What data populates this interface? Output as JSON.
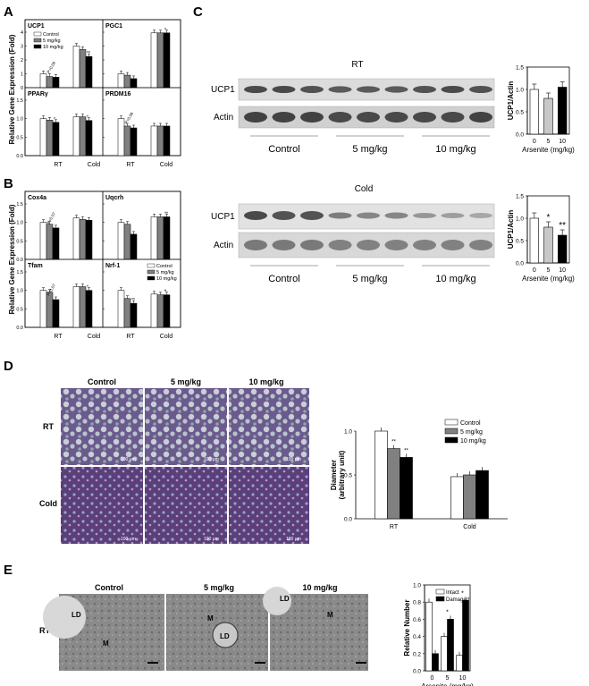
{
  "panel_labels": {
    "A": "A",
    "B": "B",
    "C": "C",
    "D": "D",
    "E": "E"
  },
  "common": {
    "ylabel_fold": "Relative Gene Expression (Fold)",
    "conditions": [
      "RT",
      "Cold"
    ],
    "legend": [
      "Control",
      "5 mg/kg",
      "10 mg/kg"
    ],
    "colors": {
      "control": "#ffffff",
      "low": "#808080",
      "high": "#000000",
      "gel_bg": "#d7d7d7",
      "band": "#3a3a3a"
    }
  },
  "chart_data": [
    {
      "id": "A1",
      "type": "bar",
      "title": "UCP1",
      "ylim": [
        0,
        4
      ],
      "yticks": [
        "0",
        "1",
        "2",
        "3",
        "4"
      ],
      "categories": [
        "RT",
        "Cold"
      ],
      "series": [
        {
          "name": "Control",
          "values": [
            1.0,
            3.0
          ]
        },
        {
          "name": "5 mg/kg",
          "values": [
            0.8,
            2.75
          ]
        },
        {
          "name": "10 mg/kg",
          "values": [
            0.75,
            2.25
          ]
        }
      ],
      "annotations": [
        "P=0.09",
        "**"
      ],
      "legend": true
    },
    {
      "id": "A2",
      "type": "bar",
      "title": "PGC1",
      "ylim": [
        0,
        4
      ],
      "yticks": [
        "0",
        "1",
        "2",
        "3",
        "4"
      ],
      "categories": [
        "RT",
        "Cold"
      ],
      "series": [
        {
          "name": "Control",
          "values": [
            1.0,
            3.95
          ]
        },
        {
          "name": "5 mg/kg",
          "values": [
            0.9,
            3.95
          ]
        },
        {
          "name": "10 mg/kg",
          "values": [
            0.65,
            3.95
          ]
        }
      ],
      "annotations": [
        "*"
      ]
    },
    {
      "id": "A3",
      "type": "bar",
      "title": "PPARγ",
      "ylim": [
        0,
        1.5
      ],
      "yticks": [
        "0.0",
        "0.5",
        "1.0",
        "1.5"
      ],
      "categories": [
        "RT",
        "Cold"
      ],
      "series": [
        {
          "name": "Control",
          "values": [
            1.0,
            1.05
          ]
        },
        {
          "name": "5 mg/kg",
          "values": [
            0.96,
            1.05
          ]
        },
        {
          "name": "10 mg/kg",
          "values": [
            0.9,
            0.95
          ]
        }
      ],
      "annotations": [
        "*",
        "*"
      ]
    },
    {
      "id": "A4",
      "type": "bar",
      "title": "PRDM16",
      "ylim": [
        0,
        1.5
      ],
      "yticks": [
        "0.0",
        "0.5",
        "1.0",
        "1.5"
      ],
      "categories": [
        "RT",
        "Cold"
      ],
      "series": [
        {
          "name": "Control",
          "values": [
            1.0,
            0.8
          ]
        },
        {
          "name": "5 mg/kg",
          "values": [
            0.8,
            0.8
          ]
        },
        {
          "name": "10 mg/kg",
          "values": [
            0.75,
            0.8
          ]
        }
      ],
      "annotations": [
        "P=0.06"
      ]
    },
    {
      "id": "B1",
      "type": "bar",
      "title": "Cox4a",
      "ylim": [
        0,
        1.5
      ],
      "yticks": [
        "0.0",
        "0.5",
        "1.0",
        "1.5"
      ],
      "categories": [
        "RT",
        "Cold"
      ],
      "series": [
        {
          "name": "Control",
          "values": [
            1.0,
            1.12
          ]
        },
        {
          "name": "5 mg/kg",
          "values": [
            0.95,
            1.08
          ]
        },
        {
          "name": "10 mg/kg",
          "values": [
            0.85,
            1.06
          ]
        }
      ],
      "annotations": [
        "P=0.07"
      ]
    },
    {
      "id": "B2",
      "type": "bar",
      "title": "Uqcrh",
      "ylim": [
        0,
        1.5
      ],
      "yticks": [
        "0.0",
        "0.5",
        "1.0",
        "1.5"
      ],
      "categories": [
        "RT",
        "Cold"
      ],
      "series": [
        {
          "name": "Control",
          "values": [
            1.0,
            1.15
          ]
        },
        {
          "name": "5 mg/kg",
          "values": [
            0.95,
            1.15
          ]
        },
        {
          "name": "10 mg/kg",
          "values": [
            0.68,
            1.15
          ]
        }
      ],
      "annotations": [
        "**"
      ]
    },
    {
      "id": "B3",
      "type": "bar",
      "title": "Tfam",
      "ylim": [
        0,
        1.5
      ],
      "yticks": [
        "0.0",
        "0.5",
        "1.0",
        "1.5"
      ],
      "categories": [
        "RT",
        "Cold"
      ],
      "series": [
        {
          "name": "Control",
          "values": [
            1.0,
            1.1
          ]
        },
        {
          "name": "5 mg/kg",
          "values": [
            0.95,
            1.1
          ]
        },
        {
          "name": "10 mg/kg",
          "values": [
            0.75,
            1.0
          ]
        }
      ],
      "annotations": [
        "P=0.07",
        "*"
      ]
    },
    {
      "id": "B4",
      "type": "bar",
      "title": "Nrf-1",
      "ylim": [
        0,
        1.5
      ],
      "yticks": [
        "0.0",
        "0.5",
        "1.0",
        "1.5"
      ],
      "categories": [
        "RT",
        "Cold"
      ],
      "series": [
        {
          "name": "Control",
          "values": [
            1.0,
            0.9
          ]
        },
        {
          "name": "5 mg/kg",
          "values": [
            0.78,
            0.88
          ]
        },
        {
          "name": "10 mg/kg",
          "values": [
            0.65,
            0.88
          ]
        }
      ],
      "annotations": [
        "**",
        "*",
        "*"
      ],
      "legend": true
    },
    {
      "id": "C1",
      "type": "bar",
      "title": "",
      "xlabel": "Arsenite (mg/kg)",
      "ylabel": "UCP1/Actin",
      "ylim": [
        0,
        1.5
      ],
      "yticks": [
        "0.0",
        "0.5",
        "1.0",
        "1.5"
      ],
      "categories": [
        "0",
        "5",
        "10"
      ],
      "values": [
        1.0,
        0.8,
        1.05
      ],
      "colors": [
        "#ffffff",
        "#c8c8c8",
        "#000000"
      ],
      "annotations": []
    },
    {
      "id": "C2",
      "type": "bar",
      "title": "",
      "xlabel": "Arsenite (mg/kg)",
      "ylabel": "UCP1/Actin",
      "ylim": [
        0,
        1.5
      ],
      "yticks": [
        "0.0",
        "0.5",
        "1.0",
        "1.5"
      ],
      "categories": [
        "0",
        "5",
        "10"
      ],
      "values": [
        1.0,
        0.8,
        0.62
      ],
      "colors": [
        "#ffffff",
        "#c8c8c8",
        "#000000"
      ],
      "annotations": [
        "*",
        "**"
      ]
    },
    {
      "id": "D1",
      "type": "bar",
      "title": "",
      "ylabel": "Diameter\n(arbitrary unit)",
      "ylim": [
        0,
        1.0
      ],
      "yticks": [
        "0.0",
        "0.5",
        "1.0"
      ],
      "categories": [
        "RT",
        "Cold"
      ],
      "series": [
        {
          "name": "Control",
          "values": [
            1.0,
            0.48
          ]
        },
        {
          "name": "5 mg/kg",
          "values": [
            0.8,
            0.5
          ]
        },
        {
          "name": "10 mg/kg",
          "values": [
            0.7,
            0.55
          ]
        }
      ],
      "annotations": [
        "**",
        "**"
      ],
      "legend": true
    },
    {
      "id": "E1",
      "type": "bar",
      "title": "",
      "xlabel": "Arsenite (mg/kg)",
      "ylabel": "Relative Number",
      "ylim": [
        0,
        1.0
      ],
      "yticks": [
        "0.0",
        "0.2",
        "0.4",
        "0.6",
        "0.8",
        "1.0"
      ],
      "categories": [
        "0",
        "5",
        "10"
      ],
      "series": [
        {
          "name": "Intact",
          "values": [
            0.8,
            0.4,
            0.18
          ]
        },
        {
          "name": "Damaged",
          "values": [
            0.2,
            0.6,
            0.82
          ]
        }
      ],
      "annotations": [
        "*",
        "*"
      ],
      "legend": true
    }
  ],
  "blots": {
    "rt": {
      "label": "RT",
      "row1": "UCP1",
      "row2": "Actin",
      "groups": [
        "Control",
        "5 mg/kg",
        "10 mg/kg"
      ]
    },
    "cold": {
      "label": "Cold",
      "row1": "UCP1",
      "row2": "Actin",
      "groups": [
        "Control",
        "5 mg/kg",
        "10 mg/kg"
      ]
    }
  },
  "histology": {
    "columns": [
      "Control",
      "5 mg/kg",
      "10 mg/kg"
    ],
    "rows": [
      "RT",
      "Cold"
    ],
    "scale": "100 μm"
  },
  "em": {
    "columns": [
      "Control",
      "5 mg/kg",
      "10 mg/kg"
    ],
    "row": "RT",
    "labels": [
      "LD",
      "M",
      "M",
      "LD",
      "LD",
      "M"
    ]
  }
}
